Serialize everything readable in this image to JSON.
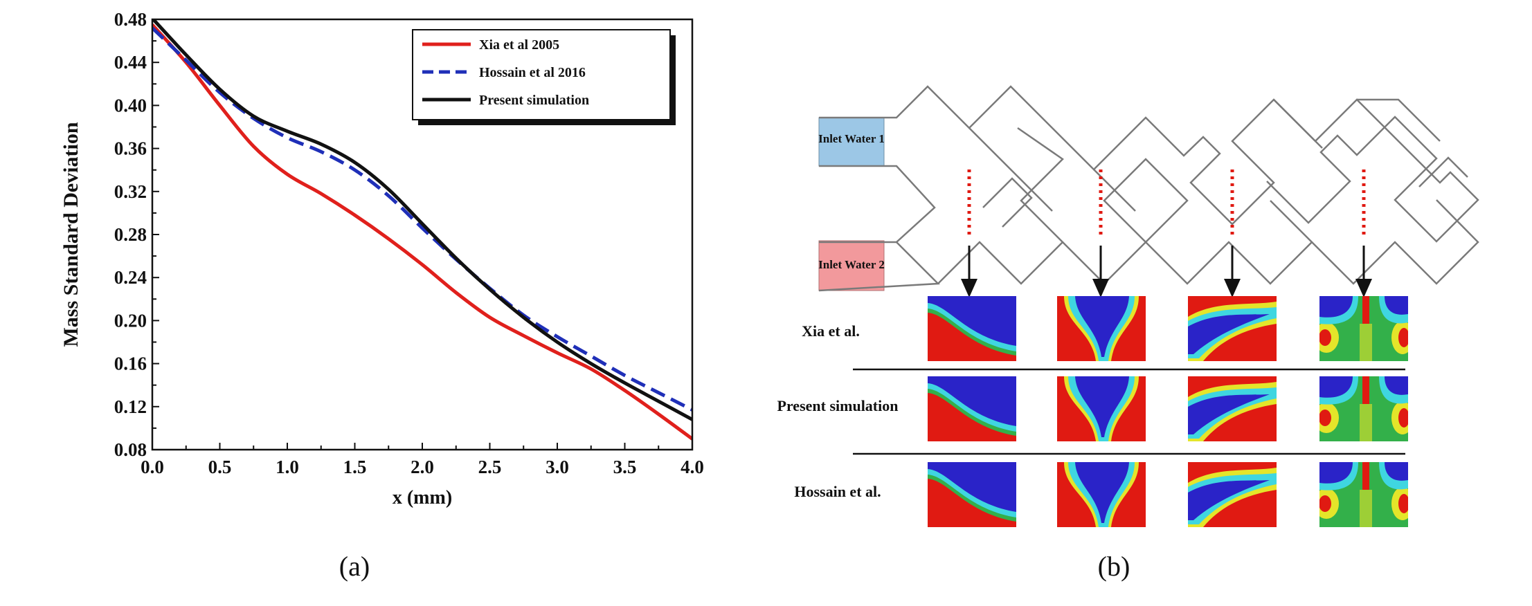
{
  "chart_data": {
    "type": "line",
    "title": "",
    "xlabel": "x (mm)",
    "ylabel": "Mass Standard Deviation",
    "xlim": [
      0,
      4
    ],
    "ylim": [
      0.08,
      0.48
    ],
    "xticks": [
      "0.0",
      "0.5",
      "1.0",
      "1.5",
      "2.0",
      "2.5",
      "3.0",
      "3.5",
      "4.0"
    ],
    "yticks": [
      "0.08",
      "0.12",
      "0.16",
      "0.20",
      "0.24",
      "0.28",
      "0.32",
      "0.36",
      "0.40",
      "0.44",
      "0.48"
    ],
    "grid": false,
    "legend_position": "top-right",
    "series": [
      {
        "name": "Xia et al 2005",
        "color": "#e0201c",
        "style": "solid",
        "x": [
          0,
          0.25,
          0.5,
          0.75,
          1.0,
          1.25,
          1.5,
          1.75,
          2.0,
          2.25,
          2.5,
          2.75,
          3.0,
          3.25,
          3.5,
          3.75,
          4.0
        ],
        "y": [
          0.475,
          0.44,
          0.4,
          0.362,
          0.336,
          0.318,
          0.298,
          0.276,
          0.252,
          0.226,
          0.203,
          0.186,
          0.17,
          0.155,
          0.135,
          0.113,
          0.09
        ]
      },
      {
        "name": "Hossain et al 2016",
        "color": "#1f2fb8",
        "style": "dashed",
        "x": [
          0,
          0.25,
          0.5,
          0.75,
          1.0,
          1.25,
          1.5,
          1.75,
          2.0,
          2.25,
          2.5,
          2.75,
          3.0,
          3.25,
          3.5,
          3.75,
          4.0
        ],
        "y": [
          0.472,
          0.442,
          0.412,
          0.388,
          0.37,
          0.357,
          0.34,
          0.316,
          0.286,
          0.257,
          0.23,
          0.205,
          0.185,
          0.167,
          0.149,
          0.133,
          0.117
        ]
      },
      {
        "name": "Present simulation",
        "color": "#111111",
        "style": "solid",
        "x": [
          0,
          0.25,
          0.5,
          0.75,
          1.0,
          1.25,
          1.5,
          1.75,
          2.0,
          2.25,
          2.5,
          2.75,
          3.0,
          3.25,
          3.5,
          3.75,
          4.0
        ],
        "y": [
          0.481,
          0.447,
          0.415,
          0.39,
          0.376,
          0.364,
          0.347,
          0.322,
          0.29,
          0.258,
          0.229,
          0.203,
          0.18,
          0.16,
          0.142,
          0.125,
          0.108
        ]
      }
    ]
  },
  "panel_b": {
    "inlet_1": "Inlet Water 1",
    "inlet_2": "Inlet Water 2",
    "rows": [
      "Xia et al.",
      "Present simulation",
      "Hossain et al."
    ]
  },
  "captions": {
    "a": "(a)",
    "b": "(b)"
  },
  "colors": {
    "inlet_1_fill": "#9cc7e6",
    "inlet_2_fill": "#f2999c",
    "contour_red": "#e01a12",
    "contour_blue": "#2a23c8",
    "contour_cyan": "#3fd6e0",
    "contour_green": "#33b04a",
    "contour_yellow": "#e4e52a"
  }
}
